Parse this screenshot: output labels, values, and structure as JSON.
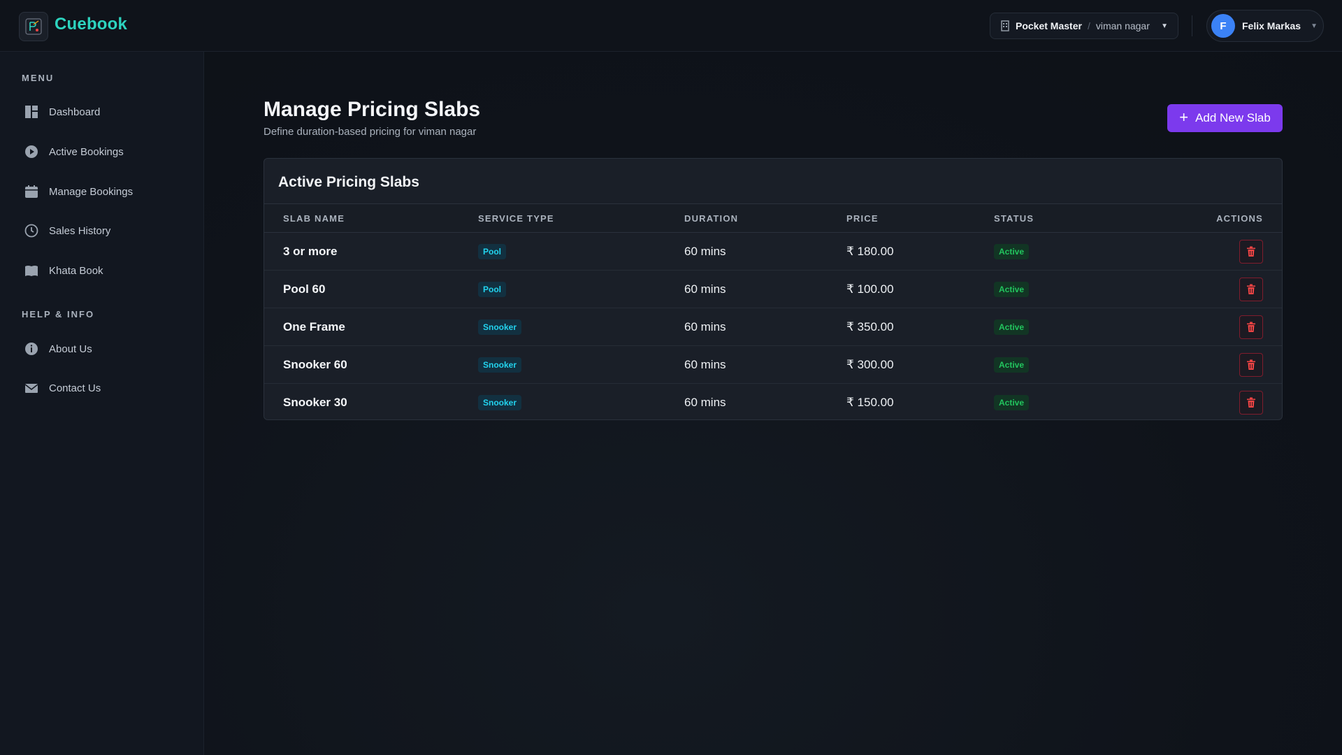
{
  "app": {
    "brand": "Cuebook"
  },
  "header": {
    "org": "Pocket Master",
    "separator": "/",
    "location": "viman nagar",
    "user_initial": "F",
    "user_name": "Felix Markas"
  },
  "sidebar": {
    "menu_title": "MENU",
    "items": [
      {
        "label": "Dashboard",
        "icon": "dashboard-icon"
      },
      {
        "label": "Active Bookings",
        "icon": "play-circle-icon"
      },
      {
        "label": "Manage Bookings",
        "icon": "calendar-icon"
      },
      {
        "label": "Sales History",
        "icon": "clock-icon"
      },
      {
        "label": "Khata Book",
        "icon": "book-icon"
      }
    ],
    "help_title": "HELP & INFO",
    "help_items": [
      {
        "label": "About Us",
        "icon": "info-icon"
      },
      {
        "label": "Contact Us",
        "icon": "mail-icon"
      }
    ]
  },
  "main": {
    "title": "Manage Pricing Slabs",
    "subtitle": "Define duration-based pricing for viman nagar",
    "add_button": "Add New Slab",
    "card_title": "Active Pricing Slabs",
    "columns": [
      "SLAB NAME",
      "SERVICE TYPE",
      "DURATION",
      "PRICE",
      "STATUS",
      "ACTIONS"
    ],
    "rows": [
      {
        "name": "3 or more",
        "service": "Pool",
        "duration": "60 mins",
        "price": "₹ 180.00",
        "status": "Active"
      },
      {
        "name": "Pool 60",
        "service": "Pool",
        "duration": "60 mins",
        "price": "₹ 100.00",
        "status": "Active"
      },
      {
        "name": "One Frame",
        "service": "Snooker",
        "duration": "60 mins",
        "price": "₹ 350.00",
        "status": "Active"
      },
      {
        "name": "Snooker 60",
        "service": "Snooker",
        "duration": "60 mins",
        "price": "₹ 300.00",
        "status": "Active"
      },
      {
        "name": "Snooker 30",
        "service": "Snooker",
        "duration": "60 mins",
        "price": "₹ 150.00",
        "status": "Active"
      }
    ]
  },
  "colors": {
    "brand": "#2dd4bf",
    "primary_button": "#7c3aed",
    "status_active": "#22c55e",
    "service_badge": "#22d3ee",
    "delete": "#ef4444"
  }
}
